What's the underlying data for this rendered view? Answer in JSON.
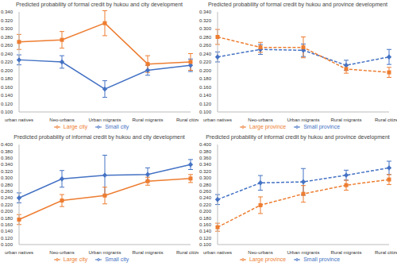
{
  "chart_data": [
    {
      "type": "line",
      "title": "Predicted probability of formal credit by hukou and city development",
      "categories": [
        "urban natives",
        "Neo-urbans",
        "Urban migrants",
        "Rural migrants",
        "Rural citizens"
      ],
      "ylim": [
        0.1,
        0.34
      ],
      "yticks": [
        {
          "value": 0.1,
          "label": "0.100"
        },
        {
          "value": 0.12,
          "label": "0.120"
        },
        {
          "value": 0.14,
          "label": "0.140"
        },
        {
          "value": 0.16,
          "label": "0.160"
        },
        {
          "value": 0.18,
          "label": "0.180"
        },
        {
          "value": 0.2,
          "label": "0.200"
        },
        {
          "value": 0.22,
          "label": "0.220"
        },
        {
          "value": 0.24,
          "label": "0.240"
        },
        {
          "value": 0.26,
          "label": "0.260"
        },
        {
          "value": 0.28,
          "label": "0.280"
        },
        {
          "value": 0.3,
          "label": "0.300"
        },
        {
          "value": 0.32,
          "label": "0.320"
        },
        {
          "value": 0.34,
          "label": "0.340"
        }
      ],
      "grid": false,
      "legend": "bottom",
      "series": [
        {
          "name": "Small city",
          "color": "#4472c4",
          "marker": "diamond",
          "line_style": "solid",
          "values": [
            0.225,
            0.22,
            0.155,
            0.2,
            0.212
          ],
          "errors": [
            0.012,
            0.015,
            0.02,
            0.012,
            0.015
          ]
        },
        {
          "name": "Large city",
          "color": "#ed7d31",
          "marker": "square",
          "line_style": "solid",
          "values": [
            0.268,
            0.273,
            0.313,
            0.215,
            0.22
          ],
          "errors": [
            0.018,
            0.02,
            0.03,
            0.02,
            0.02
          ]
        }
      ]
    },
    {
      "type": "line",
      "title": "Predicted probability of formal credit by hukou and province development",
      "categories": [
        "urban natives",
        "Neo-urbans",
        "Urban migrants",
        "Rural migrants",
        "Rural citizens"
      ],
      "ylim": [
        0.1,
        0.34
      ],
      "yticks": [
        {
          "value": 0.1,
          "label": "0.100"
        },
        {
          "value": 0.12,
          "label": "0.120"
        },
        {
          "value": 0.14,
          "label": "0.140"
        },
        {
          "value": 0.16,
          "label": "0.160"
        },
        {
          "value": 0.18,
          "label": "0.180"
        },
        {
          "value": 0.2,
          "label": "0.200"
        },
        {
          "value": 0.22,
          "label": "0.220"
        },
        {
          "value": 0.24,
          "label": "0.240"
        },
        {
          "value": 0.26,
          "label": "0.260"
        },
        {
          "value": 0.28,
          "label": "0.280"
        },
        {
          "value": 0.3,
          "label": "0.300"
        },
        {
          "value": 0.32,
          "label": "0.320"
        },
        {
          "value": 0.34,
          "label": "0.340"
        }
      ],
      "grid": false,
      "legend": "bottom",
      "series": [
        {
          "name": "Small province",
          "color": "#4472c4",
          "marker": "diamond",
          "line_style": "dashed",
          "values": [
            0.232,
            0.25,
            0.248,
            0.212,
            0.232
          ],
          "errors": [
            0.012,
            0.012,
            0.015,
            0.012,
            0.018
          ]
        },
        {
          "name": "Large province",
          "color": "#ed7d31",
          "marker": "square",
          "line_style": "dashed",
          "values": [
            0.28,
            0.255,
            0.255,
            0.203,
            0.195
          ],
          "errors": [
            0.018,
            0.012,
            0.025,
            0.01,
            0.012
          ]
        }
      ]
    },
    {
      "type": "line",
      "title": "Predicted probability of informal credit by hukou and city development",
      "categories": [
        "urban natives",
        "Neo-urbans",
        "Urban migrants",
        "Rural migrants",
        "Rural citizens"
      ],
      "ylim": [
        0.1,
        0.4
      ],
      "yticks": [
        {
          "value": 0.1,
          "label": "0.100"
        },
        {
          "value": 0.12,
          "label": "0.120"
        },
        {
          "value": 0.14,
          "label": "0.140"
        },
        {
          "value": 0.16,
          "label": "0.160"
        },
        {
          "value": 0.18,
          "label": "0.180"
        },
        {
          "value": 0.2,
          "label": "0.200"
        },
        {
          "value": 0.22,
          "label": "0.220"
        },
        {
          "value": 0.24,
          "label": "0.240"
        },
        {
          "value": 0.26,
          "label": "0.260"
        },
        {
          "value": 0.28,
          "label": "0.280"
        },
        {
          "value": 0.3,
          "label": "0.300"
        },
        {
          "value": 0.32,
          "label": "0.320"
        },
        {
          "value": 0.34,
          "label": "0.340"
        },
        {
          "value": 0.36,
          "label": "0.360"
        },
        {
          "value": 0.38,
          "label": "0.380"
        },
        {
          "value": 0.4,
          "label": "0.400"
        }
      ],
      "grid": false,
      "legend": "bottom",
      "series": [
        {
          "name": "Small city",
          "color": "#4472c4",
          "marker": "diamond",
          "line_style": "solid",
          "values": [
            0.24,
            0.297,
            0.308,
            0.31,
            0.34
          ],
          "errors": [
            0.015,
            0.025,
            0.06,
            0.02,
            0.015
          ]
        },
        {
          "name": "Large city",
          "color": "#ed7d31",
          "marker": "square",
          "line_style": "solid",
          "values": [
            0.175,
            0.232,
            0.247,
            0.29,
            0.298
          ],
          "errors": [
            0.015,
            0.018,
            0.025,
            0.012,
            0.012
          ]
        }
      ]
    },
    {
      "type": "line",
      "title": "Predicted probability of informal credit by hukou and province development",
      "categories": [
        "urban natives",
        "Neo-urbans",
        "Urban migrants",
        "Rural migrants",
        "Rural citizens"
      ],
      "ylim": [
        0.1,
        0.4
      ],
      "yticks": [
        {
          "value": 0.1,
          "label": "0.100"
        },
        {
          "value": 0.12,
          "label": "0.120"
        },
        {
          "value": 0.14,
          "label": "0.140"
        },
        {
          "value": 0.16,
          "label": "0.160"
        },
        {
          "value": 0.18,
          "label": "0.180"
        },
        {
          "value": 0.2,
          "label": "0.200"
        },
        {
          "value": 0.22,
          "label": "0.220"
        },
        {
          "value": 0.24,
          "label": "0.240"
        },
        {
          "value": 0.26,
          "label": "0.260"
        },
        {
          "value": 0.28,
          "label": "0.280"
        },
        {
          "value": 0.3,
          "label": "0.300"
        },
        {
          "value": 0.32,
          "label": "0.320"
        },
        {
          "value": 0.34,
          "label": "0.340"
        },
        {
          "value": 0.36,
          "label": "0.360"
        },
        {
          "value": 0.38,
          "label": "0.380"
        },
        {
          "value": 0.4,
          "label": "0.400"
        }
      ],
      "grid": false,
      "legend": "bottom",
      "series": [
        {
          "name": "Small province",
          "color": "#4472c4",
          "marker": "diamond",
          "line_style": "dashed",
          "values": [
            0.235,
            0.285,
            0.288,
            0.308,
            0.33
          ],
          "errors": [
            0.015,
            0.022,
            0.04,
            0.015,
            0.02
          ]
        },
        {
          "name": "Large province",
          "color": "#ed7d31",
          "marker": "square",
          "line_style": "dashed",
          "values": [
            0.152,
            0.218,
            0.252,
            0.278,
            0.295
          ],
          "errors": [
            0.012,
            0.025,
            0.025,
            0.015,
            0.015
          ]
        }
      ]
    }
  ]
}
